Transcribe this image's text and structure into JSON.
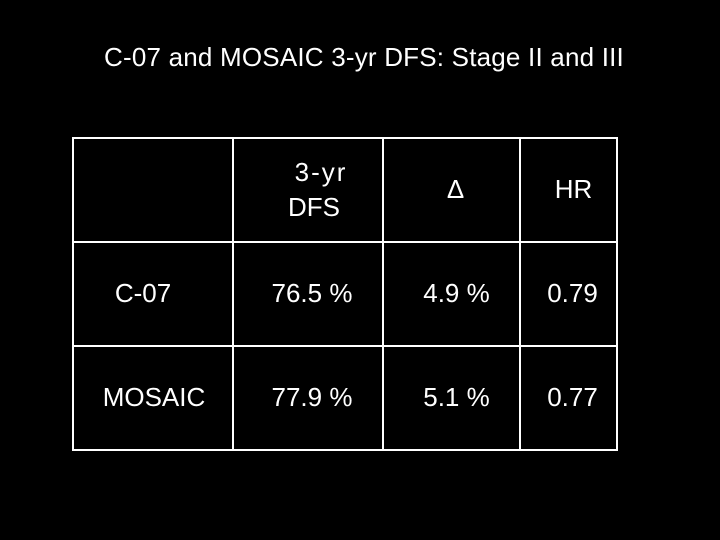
{
  "slide": {
    "title": "C-07 and MOSAIC 3-yr DFS: Stage II and III"
  },
  "table": {
    "headers": {
      "col1": "",
      "col2_line1": "3-yr",
      "col2_line2": "DFS",
      "col3": "Δ",
      "col4": "HR"
    },
    "rows": [
      {
        "label": "C-07",
        "dfs": "76.5 %",
        "delta": "4.9 %",
        "hr": "0.79"
      },
      {
        "label": "MOSAIC",
        "dfs": "77.9 %",
        "delta": "5.1 %",
        "hr": "0.77"
      }
    ]
  },
  "colors": {
    "background": "#000000",
    "text": "#ffffff",
    "lines": "#ffffff"
  }
}
